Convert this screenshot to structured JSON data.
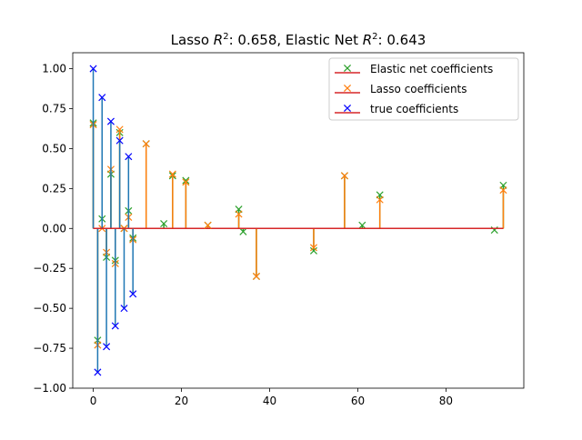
{
  "chart_data": {
    "type": "stem",
    "title": "Lasso $R^2$: 0.658, Elastic Net $R^2$: 0.643",
    "title_parts": {
      "lasso_prefix": "Lasso ",
      "r": "R",
      "sup": "2",
      "lasso_value": ": 0.658, Elastic Net ",
      "enet_value": ": 0.643"
    },
    "xlabel": "",
    "ylabel": "",
    "xlim": [
      -4.65,
      97.65
    ],
    "ylim": [
      -1.0,
      1.1
    ],
    "x_ticks": [
      0,
      20,
      40,
      60,
      80
    ],
    "x_tick_labels": [
      "0",
      "20",
      "40",
      "60",
      "80"
    ],
    "y_ticks": [
      -1.0,
      -0.75,
      -0.5,
      -0.25,
      0.0,
      0.25,
      0.5,
      0.75,
      1.0
    ],
    "y_tick_labels": [
      "−1.00",
      "−0.75",
      "−0.50",
      "−0.25",
      "0.00",
      "0.25",
      "0.50",
      "0.75",
      "1.00"
    ],
    "grid": false,
    "legend_position": "top-right",
    "series": [
      {
        "name": "Elastic net coefficients",
        "color": "#2ca02c",
        "marker": "x",
        "stem_color": "#2ca02c",
        "baseline_color": "#d62728",
        "x": [
          0,
          1,
          2,
          3,
          4,
          5,
          6,
          7,
          8,
          9,
          12,
          16,
          18,
          21,
          26,
          33,
          34,
          37,
          50,
          57,
          61,
          65,
          91,
          93
        ],
        "values": [
          0.66,
          -0.7,
          0.06,
          -0.18,
          0.34,
          -0.2,
          0.6,
          0.0,
          0.11,
          -0.06,
          0.53,
          0.03,
          0.33,
          0.3,
          0.02,
          0.12,
          -0.02,
          -0.3,
          -0.14,
          0.33,
          0.02,
          0.21,
          -0.01,
          0.27
        ]
      },
      {
        "name": "Lasso coefficients",
        "color": "#ff7f0e",
        "marker": "x",
        "stem_color": "#ff7f0e",
        "baseline_color": "#d62728",
        "x": [
          0,
          1,
          2,
          3,
          4,
          5,
          6,
          7,
          8,
          9,
          12,
          18,
          21,
          26,
          33,
          37,
          50,
          57,
          65,
          93
        ],
        "values": [
          0.65,
          -0.73,
          0.0,
          -0.15,
          0.37,
          -0.22,
          0.62,
          0.0,
          0.07,
          -0.07,
          0.53,
          0.34,
          0.29,
          0.02,
          0.09,
          -0.3,
          -0.12,
          0.33,
          0.18,
          0.24
        ]
      },
      {
        "name": "true coefficients",
        "color": "#0000ff",
        "marker": "x",
        "stem_color": "#1f77b4",
        "baseline_color": "#d62728",
        "x": [
          0,
          1,
          2,
          3,
          4,
          5,
          6,
          7,
          8,
          9
        ],
        "values": [
          1.0,
          -0.9,
          0.82,
          -0.74,
          0.67,
          -0.61,
          0.55,
          -0.5,
          0.45,
          -0.41
        ]
      }
    ]
  }
}
